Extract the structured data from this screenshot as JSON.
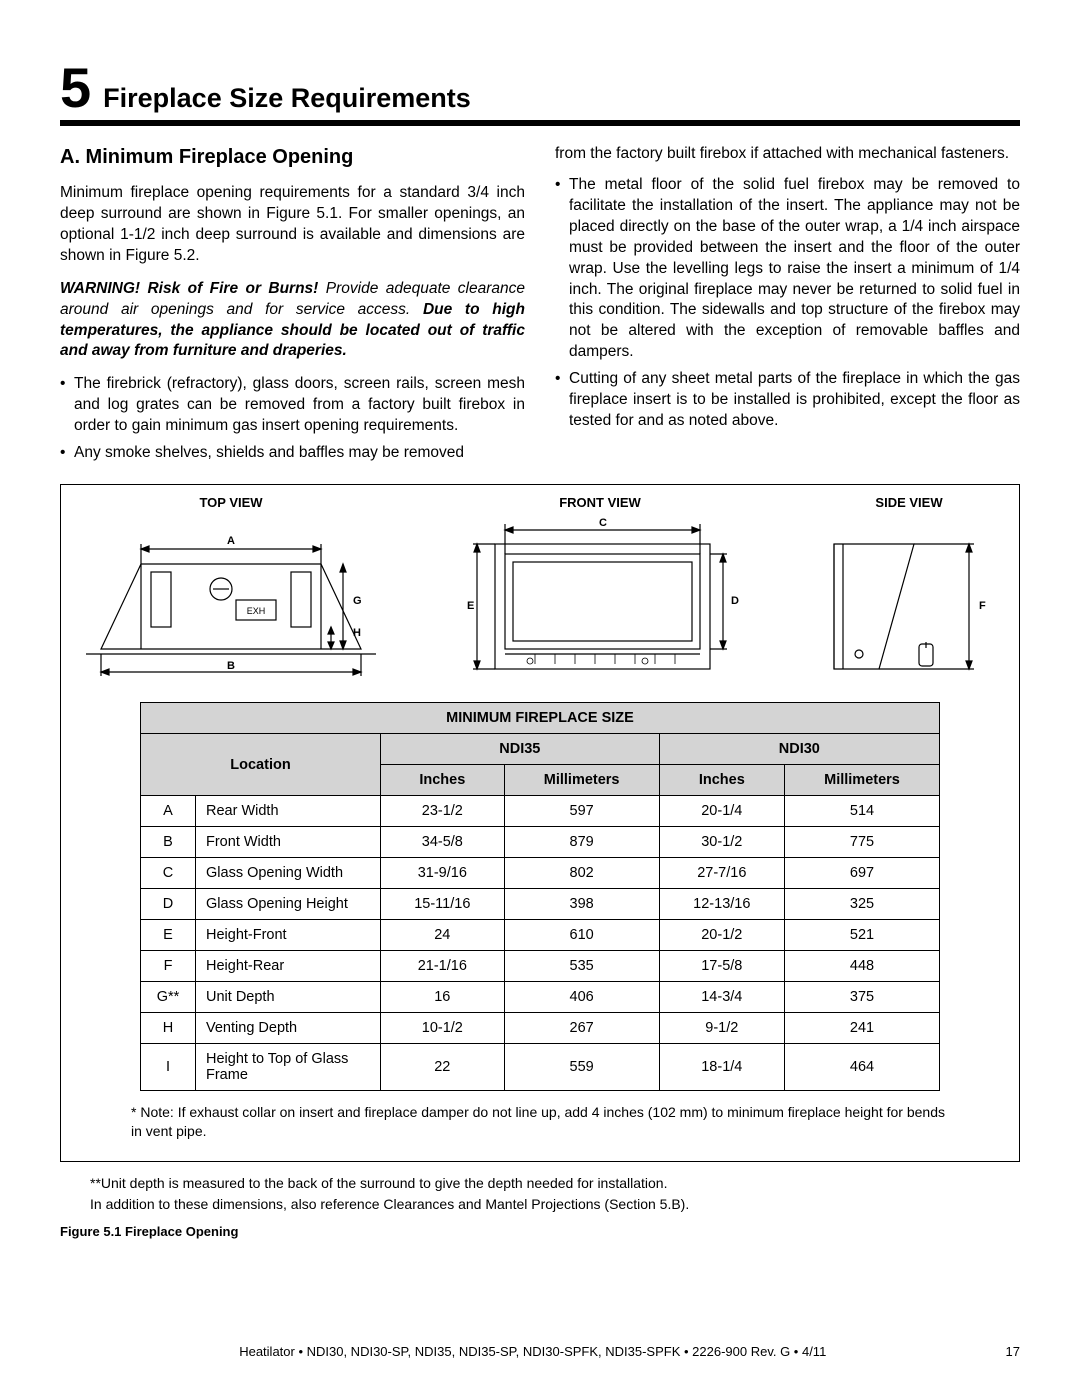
{
  "section": {
    "number": "5",
    "title": "Fireplace Size Requirements"
  },
  "subhead": "A.  Minimum Fireplace Opening",
  "intro_para": "Minimum fireplace opening requirements for a standard 3/4 inch deep surround are shown in Figure 5.1.  For smaller openings, an optional 1-1/2 inch deep surround is available and dimensions are shown in Figure 5.2.",
  "warning": {
    "lead": "WARNING! Risk of Fire or Burns!",
    "rest1": " Provide adequate clearance around air openings and for service access. ",
    "bold2": "Due to high temperatures, the appliance should be located out of traffic and away from furniture and draperies."
  },
  "left_bullets": [
    "The firebrick (refractory), glass doors, screen rails, screen mesh and log grates can be removed from a factory built firebox in order to gain minimum gas insert opening requirements.",
    "Any smoke shelves, shields and baffles may be removed"
  ],
  "right_top": "from the factory built firebox if attached with mechanical fasteners.",
  "right_bullets": [
    "The metal floor of the solid fuel firebox may be removed to facilitate the installation of the insert.  The appliance may not be placed directly on the base of the outer wrap, a 1/4 inch airspace must be provided between the insert and the floor of the outer wrap.  Use the levelling legs to raise the insert a minimum of 1/4 inch.  The original fireplace may never be returned to solid fuel in this condition.  The sidewalls and top structure of the firebox may not be altered with the exception of removable baffles and dampers.",
    "Cutting of any sheet metal parts of the fireplace in which the gas fireplace insert is to be installed is prohibited, except the floor as tested for and as noted above."
  ],
  "views": {
    "top": "TOP VIEW",
    "front": "FRONT VIEW",
    "side": "SIDE VIEW"
  },
  "dim_labels": {
    "A": "A",
    "B": "B",
    "C": "C",
    "D": "D",
    "E": "E",
    "F": "F",
    "G": "G",
    "H": "H"
  },
  "svg_text": {
    "exh": "EXH"
  },
  "table": {
    "title": "MINIMUM FIREPLACE SIZE",
    "loc_header": "Location",
    "models": [
      "NDI35",
      "NDI30"
    ],
    "units": [
      "Inches",
      "Millimeters",
      "Inches",
      "Millimeters"
    ],
    "rows": [
      {
        "code": "A",
        "name": "Rear Width",
        "v": [
          "23-1/2",
          "597",
          "20-1/4",
          "514"
        ]
      },
      {
        "code": "B",
        "name": "Front Width",
        "v": [
          "34-5/8",
          "879",
          "30-1/2",
          "775"
        ]
      },
      {
        "code": "C",
        "name": "Glass Opening Width",
        "v": [
          "31-9/16",
          "802",
          "27-7/16",
          "697"
        ]
      },
      {
        "code": "D",
        "name": "Glass Opening Height",
        "v": [
          "15-11/16",
          "398",
          "12-13/16",
          "325"
        ]
      },
      {
        "code": "E",
        "name": "Height-Front",
        "v": [
          "24",
          "610",
          "20-1/2",
          "521"
        ]
      },
      {
        "code": "F",
        "name": "Height-Rear",
        "v": [
          "21-1/16",
          "535",
          "17-5/8",
          "448"
        ]
      },
      {
        "code": "G**",
        "name": "Unit Depth",
        "v": [
          "16",
          "406",
          "14-3/4",
          "375"
        ]
      },
      {
        "code": "H",
        "name": "Venting Depth",
        "v": [
          "10-1/2",
          "267",
          "9-1/2",
          "241"
        ]
      },
      {
        "code": "I",
        "name": "Height to Top of Glass Frame",
        "v": [
          "22",
          "559",
          "18-1/4",
          "464"
        ]
      }
    ],
    "note": "* Note: If exhaust collar on insert and fireplace damper do not line up, add 4 inches (102 mm) to minimum fireplace height for bends in vent pipe."
  },
  "outer_note1": "**Unit depth is measured to the back of the surround to give the depth needed for installation.",
  "outer_note2": "In addition to these dimensions, also reference Clearances and Mantel Projections (Section 5.B).",
  "fig_caption": "Figure 5.1  Fireplace Opening",
  "footer": {
    "center": "Heatilator  •  NDI30, NDI30-SP, NDI35, NDI35-SP, NDI30-SPFK, NDI35-SPFK  •  2226-900 Rev. G  •  4/11",
    "page": "17"
  },
  "colors": {
    "table_header_bg": "#d4d4d4",
    "rule": "#000000"
  }
}
